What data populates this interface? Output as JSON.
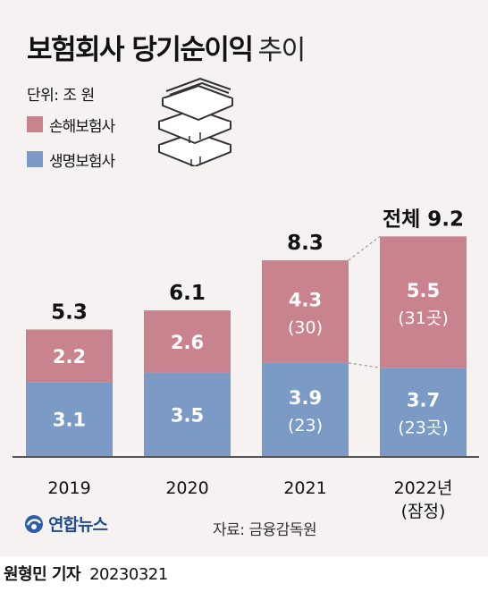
{
  "title": "보험회사 당기순이익",
  "title_sub": "추이",
  "unit": "단위: 조 원",
  "legend": [
    {
      "label": "손해보험사",
      "color": "#c9838f"
    },
    {
      "label": "생명보험사",
      "color": "#7b9bc6"
    }
  ],
  "chart_data": {
    "type": "bar",
    "stacked": true,
    "categories": [
      "2019",
      "2020",
      "2021",
      "2022년"
    ],
    "category_sublabels": [
      "",
      "",
      "",
      "(잠정)"
    ],
    "series": [
      {
        "name": "생명보험사",
        "values": [
          3.1,
          3.5,
          3.9,
          3.7
        ],
        "color": "#7b9bc6",
        "labels": [
          "3.1",
          "3.5",
          "3.9",
          "3.7"
        ],
        "sublabels": [
          "",
          "",
          "(23)",
          "(23곳)"
        ]
      },
      {
        "name": "손해보험사",
        "values": [
          2.2,
          2.6,
          4.3,
          5.5
        ],
        "color": "#c9838f",
        "labels": [
          "2.2",
          "2.6",
          "4.3",
          "5.5"
        ],
        "sublabels": [
          "",
          "",
          "(30)",
          "(31곳)"
        ]
      }
    ],
    "totals": [
      "5.3",
      "6.1",
      "8.3",
      "전체 9.2"
    ],
    "ylim": [
      0,
      10
    ],
    "grid": false
  },
  "footer": {
    "logo_text": "연합뉴스",
    "source": "자료: 금융감독원"
  },
  "byline": {
    "author": "원형민 기자",
    "date": "20230321"
  }
}
